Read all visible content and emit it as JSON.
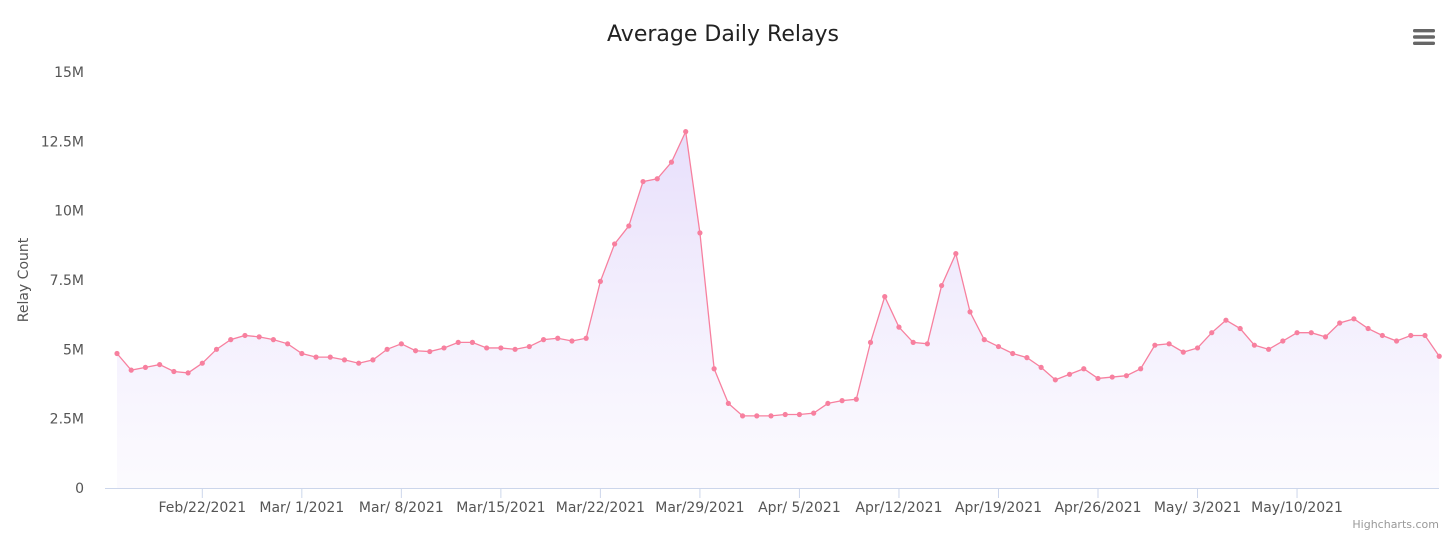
{
  "chart_data": {
    "type": "area",
    "title": "Average Daily Relays",
    "ylabel": "Relay Count",
    "xlabel": "",
    "ylim": [
      0,
      15000000
    ],
    "y_ticks": [
      0,
      2500000,
      5000000,
      7500000,
      10000000,
      12500000,
      15000000
    ],
    "y_tick_labels": [
      "0",
      "2.5M",
      "5M",
      "7.5M",
      "10M",
      "12.5M",
      "15M"
    ],
    "x_start": "2021-02-16",
    "x_end": "2021-05-19",
    "x_tick_dates": [
      "2021-02-22",
      "2021-03-01",
      "2021-03-08",
      "2021-03-15",
      "2021-03-22",
      "2021-03-29",
      "2021-04-05",
      "2021-04-12",
      "2021-04-19",
      "2021-04-26",
      "2021-05-03",
      "2021-05-10"
    ],
    "x_tick_labels": [
      "Feb/22/2021",
      "Mar/ 1/2021",
      "Mar/ 8/2021",
      "Mar/15/2021",
      "Mar/22/2021",
      "Mar/29/2021",
      "Apr/ 5/2021",
      "Apr/12/2021",
      "Apr/19/2021",
      "Apr/26/2021",
      "May/ 3/2021",
      "May/10/2021"
    ],
    "grid": false,
    "legend": "none",
    "series": [
      {
        "color": "#f7809f",
        "fill_color": "#eeeafc",
        "values": [
          4.85,
          4.25,
          4.35,
          4.45,
          4.2,
          4.15,
          4.5,
          5.0,
          5.35,
          5.5,
          5.45,
          5.35,
          5.2,
          4.85,
          4.72,
          4.72,
          4.62,
          4.5,
          4.62,
          5.0,
          5.2,
          4.95,
          4.92,
          5.05,
          5.25,
          5.25,
          5.05,
          5.05,
          5.0,
          5.1,
          5.35,
          5.4,
          5.3,
          5.4,
          7.45,
          8.8,
          9.45,
          11.05,
          11.15,
          11.75,
          12.85,
          9.2,
          4.3,
          3.05,
          2.6,
          2.6,
          2.6,
          2.65,
          2.65,
          2.7,
          3.05,
          3.15,
          3.2,
          5.25,
          6.9,
          5.8,
          5.25,
          5.2,
          7.3,
          8.45,
          6.35,
          5.35,
          5.1,
          4.85,
          4.7,
          4.35,
          3.9,
          4.1,
          4.3,
          3.95,
          4.0,
          4.05,
          4.3,
          5.15,
          5.2,
          4.9,
          5.05,
          5.6,
          6.05,
          5.75,
          5.15,
          5.0,
          5.3,
          5.6,
          5.6,
          5.45,
          5.95,
          6.1,
          5.75,
          5.5,
          5.3,
          5.5,
          5.5,
          4.75
        ]
      }
    ],
    "y_unit_multiplier": 1000000
  },
  "credits": "Highcharts.com",
  "icons": {
    "menu": "hamburger-menu-icon"
  },
  "colors": {
    "axis_line": "#ccd6eb",
    "text": "#555555",
    "title": "#222222"
  }
}
